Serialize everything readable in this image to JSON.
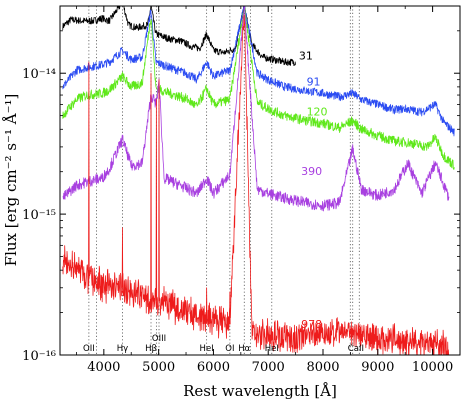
{
  "chart_data": {
    "type": "line",
    "xlabel": "Rest wavelength [Å]",
    "ylabel": "Flux [erg cm⁻² s⁻¹ Å⁻¹]",
    "xlim": [
      3200,
      10500
    ],
    "ylim": [
      1e-16,
      3e-14
    ],
    "y_scale": "log",
    "x_ticks": [
      4000,
      5000,
      6000,
      7000,
      8000,
      9000,
      10000
    ],
    "y_ticks": [
      {
        "value": 1e-16,
        "label": "10⁻¹⁶"
      },
      {
        "value": 1e-15,
        "label": "10⁻¹⁵"
      },
      {
        "value": 1e-14,
        "label": "10⁻¹⁴"
      }
    ],
    "series": [
      {
        "name": "31",
        "color": "#000000",
        "points": [
          [
            3250,
            2.15e-14
          ],
          [
            3400,
            2.4e-14
          ],
          [
            3600,
            2.35e-14
          ],
          [
            3800,
            2.35e-14
          ],
          [
            3970,
            2.45e-14
          ],
          [
            4100,
            2.35e-14
          ],
          [
            4340,
            3.2e-14
          ],
          [
            4450,
            2.2e-14
          ],
          [
            4600,
            2.1e-14
          ],
          [
            4800,
            2.2e-14
          ],
          [
            4861,
            3e-14
          ],
          [
            4950,
            1.9e-14
          ],
          [
            5200,
            1.75e-14
          ],
          [
            5400,
            1.7e-14
          ],
          [
            5600,
            1.55e-14
          ],
          [
            5750,
            1.5e-14
          ],
          [
            5876,
            1.9e-14
          ],
          [
            6000,
            1.45e-14
          ],
          [
            6200,
            1.4e-14
          ],
          [
            6400,
            1.5e-14
          ],
          [
            6563,
            3e-14
          ],
          [
            6700,
            1.6e-14
          ],
          [
            6900,
            1.3e-14
          ],
          [
            7100,
            1.25e-14
          ],
          [
            7300,
            1.2e-14
          ],
          [
            7500,
            1.2e-14
          ]
        ]
      },
      {
        "name": "91",
        "color": "#2b4cf2",
        "points": [
          [
            3250,
            8e-15
          ],
          [
            3500,
            1.05e-14
          ],
          [
            3700,
            1.1e-14
          ],
          [
            3970,
            1.15e-14
          ],
          [
            4100,
            1.2e-14
          ],
          [
            4340,
            1.45e-14
          ],
          [
            4500,
            1.25e-14
          ],
          [
            4700,
            1.3e-14
          ],
          [
            4861,
            2.8e-14
          ],
          [
            4950,
            1.2e-14
          ],
          [
            5200,
            1.1e-14
          ],
          [
            5500,
            1e-14
          ],
          [
            5700,
            9e-15
          ],
          [
            5876,
            1.2e-14
          ],
          [
            6000,
            9.5e-15
          ],
          [
            6300,
            1.05e-14
          ],
          [
            6563,
            3e-14
          ],
          [
            6800,
            1e-14
          ],
          [
            7000,
            9e-15
          ],
          [
            7300,
            8e-15
          ],
          [
            7700,
            7.5e-15
          ],
          [
            8000,
            7.2e-15
          ],
          [
            8300,
            6.8e-15
          ],
          [
            8542,
            7.2e-15
          ],
          [
            8700,
            6.5e-15
          ],
          [
            9000,
            6e-15
          ],
          [
            9300,
            5.5e-15
          ],
          [
            9500,
            5.6e-15
          ],
          [
            9800,
            5.3e-15
          ],
          [
            10050,
            6e-15
          ],
          [
            10200,
            4.5e-15
          ],
          [
            10400,
            3.8e-15
          ]
        ]
      },
      {
        "name": "120",
        "color": "#5fe81a",
        "points": [
          [
            3250,
            5e-15
          ],
          [
            3500,
            6.5e-15
          ],
          [
            3700,
            7e-15
          ],
          [
            3970,
            7.2e-15
          ],
          [
            4100,
            7.6e-15
          ],
          [
            4340,
            9.5e-15
          ],
          [
            4500,
            8e-15
          ],
          [
            4700,
            8.5e-15
          ],
          [
            4861,
            2.6e-14
          ],
          [
            4950,
            7.8e-15
          ],
          [
            5200,
            7.2e-15
          ],
          [
            5500,
            6.6e-15
          ],
          [
            5700,
            5.8e-15
          ],
          [
            5876,
            7.8e-15
          ],
          [
            6000,
            6e-15
          ],
          [
            6300,
            6.5e-15
          ],
          [
            6563,
            3e-14
          ],
          [
            6800,
            6.2e-15
          ],
          [
            7000,
            5.6e-15
          ],
          [
            7300,
            5e-15
          ],
          [
            7700,
            4.6e-15
          ],
          [
            8000,
            4.4e-15
          ],
          [
            8300,
            4.1e-15
          ],
          [
            8542,
            4.6e-15
          ],
          [
            8700,
            4e-15
          ],
          [
            9000,
            3.6e-15
          ],
          [
            9300,
            3.3e-15
          ],
          [
            9600,
            3.2e-15
          ],
          [
            9900,
            3e-15
          ],
          [
            10050,
            3.5e-15
          ],
          [
            10200,
            2.6e-15
          ],
          [
            10400,
            2.2e-15
          ]
        ]
      },
      {
        "name": "390",
        "color": "#a840e0",
        "points": [
          [
            3250,
            1.3e-15
          ],
          [
            3500,
            1.6e-15
          ],
          [
            3700,
            1.7e-15
          ],
          [
            3970,
            1.8e-15
          ],
          [
            4100,
            2.1e-15
          ],
          [
            4340,
            3.4e-15
          ],
          [
            4500,
            2.2e-15
          ],
          [
            4700,
            2.3e-15
          ],
          [
            4861,
            7e-15
          ],
          [
            4959,
            6e-15
          ],
          [
            5007,
            9e-15
          ],
          [
            5100,
            1.8e-15
          ],
          [
            5400,
            1.6e-15
          ],
          [
            5700,
            1.4e-15
          ],
          [
            5876,
            1.8e-15
          ],
          [
            6000,
            1.4e-15
          ],
          [
            6300,
            1.9e-15
          ],
          [
            6563,
            3e-14
          ],
          [
            6800,
            1.5e-15
          ],
          [
            7000,
            1.4e-15
          ],
          [
            7300,
            1.3e-15
          ],
          [
            7700,
            1.2e-15
          ],
          [
            8000,
            1.15e-15
          ],
          [
            8300,
            1.2e-15
          ],
          [
            8542,
            2.9e-15
          ],
          [
            8700,
            1.5e-15
          ],
          [
            9000,
            1.35e-15
          ],
          [
            9300,
            1.5e-15
          ],
          [
            9550,
            2.3e-15
          ],
          [
            9800,
            1.4e-15
          ],
          [
            10050,
            2.3e-15
          ],
          [
            10300,
            1.3e-15
          ]
        ]
      },
      {
        "name": "978",
        "color": "#ee1c1c",
        "points": [
          [
            3250,
            4.5e-16
          ],
          [
            3500,
            4.2e-16
          ],
          [
            3727,
            3.5e-16
          ],
          [
            3900,
            3.2e-16
          ],
          [
            4100,
            3.1e-16
          ],
          [
            4340,
            3e-16
          ],
          [
            4600,
            2.7e-16
          ],
          [
            4861,
            2.5e-16
          ],
          [
            5007,
            2.4e-16
          ],
          [
            5300,
            2.2e-16
          ],
          [
            5600,
            2e-16
          ],
          [
            5876,
            1.8e-16
          ],
          [
            6000,
            1.75e-16
          ],
          [
            6300,
            1.65e-16
          ],
          [
            6563,
            3e-14
          ],
          [
            6700,
            1.5e-16
          ],
          [
            6900,
            1.4e-16
          ],
          [
            7100,
            1.4e-16
          ],
          [
            7300,
            1.35e-16
          ],
          [
            7500,
            1.3e-16
          ],
          [
            7900,
            1.45e-16
          ],
          [
            8200,
            1.4e-16
          ],
          [
            8542,
            1.5e-16
          ],
          [
            8800,
            1.35e-16
          ],
          [
            9100,
            1.3e-16
          ],
          [
            9400,
            1.3e-16
          ],
          [
            9700,
            1.2e-16
          ],
          [
            10000,
            1.2e-16
          ],
          [
            10300,
            1.1e-16
          ]
        ]
      }
    ],
    "spikes_978": [
      {
        "x": 3727,
        "peak": 1.2e-14
      },
      {
        "x": 4340,
        "peak": 8e-16
      },
      {
        "x": 4861,
        "peak": 1e-14
      },
      {
        "x": 4959,
        "peak": 6.5e-15
      },
      {
        "x": 5007,
        "peak": 9e-15
      },
      {
        "x": 5876,
        "peak": 3e-16
      },
      {
        "x": 6300,
        "peak": 2.8e-16
      }
    ],
    "line_markers": [
      3727,
      3868,
      4340,
      4861,
      4959,
      5007,
      5876,
      6300,
      6563,
      6678,
      7065,
      8498,
      8542,
      8662
    ],
    "line_labels": [
      "OII",
      "Hγ",
      "Hβ",
      "OIII",
      "HeI",
      "OI",
      "Hα",
      "HeI",
      "CaII"
    ]
  }
}
